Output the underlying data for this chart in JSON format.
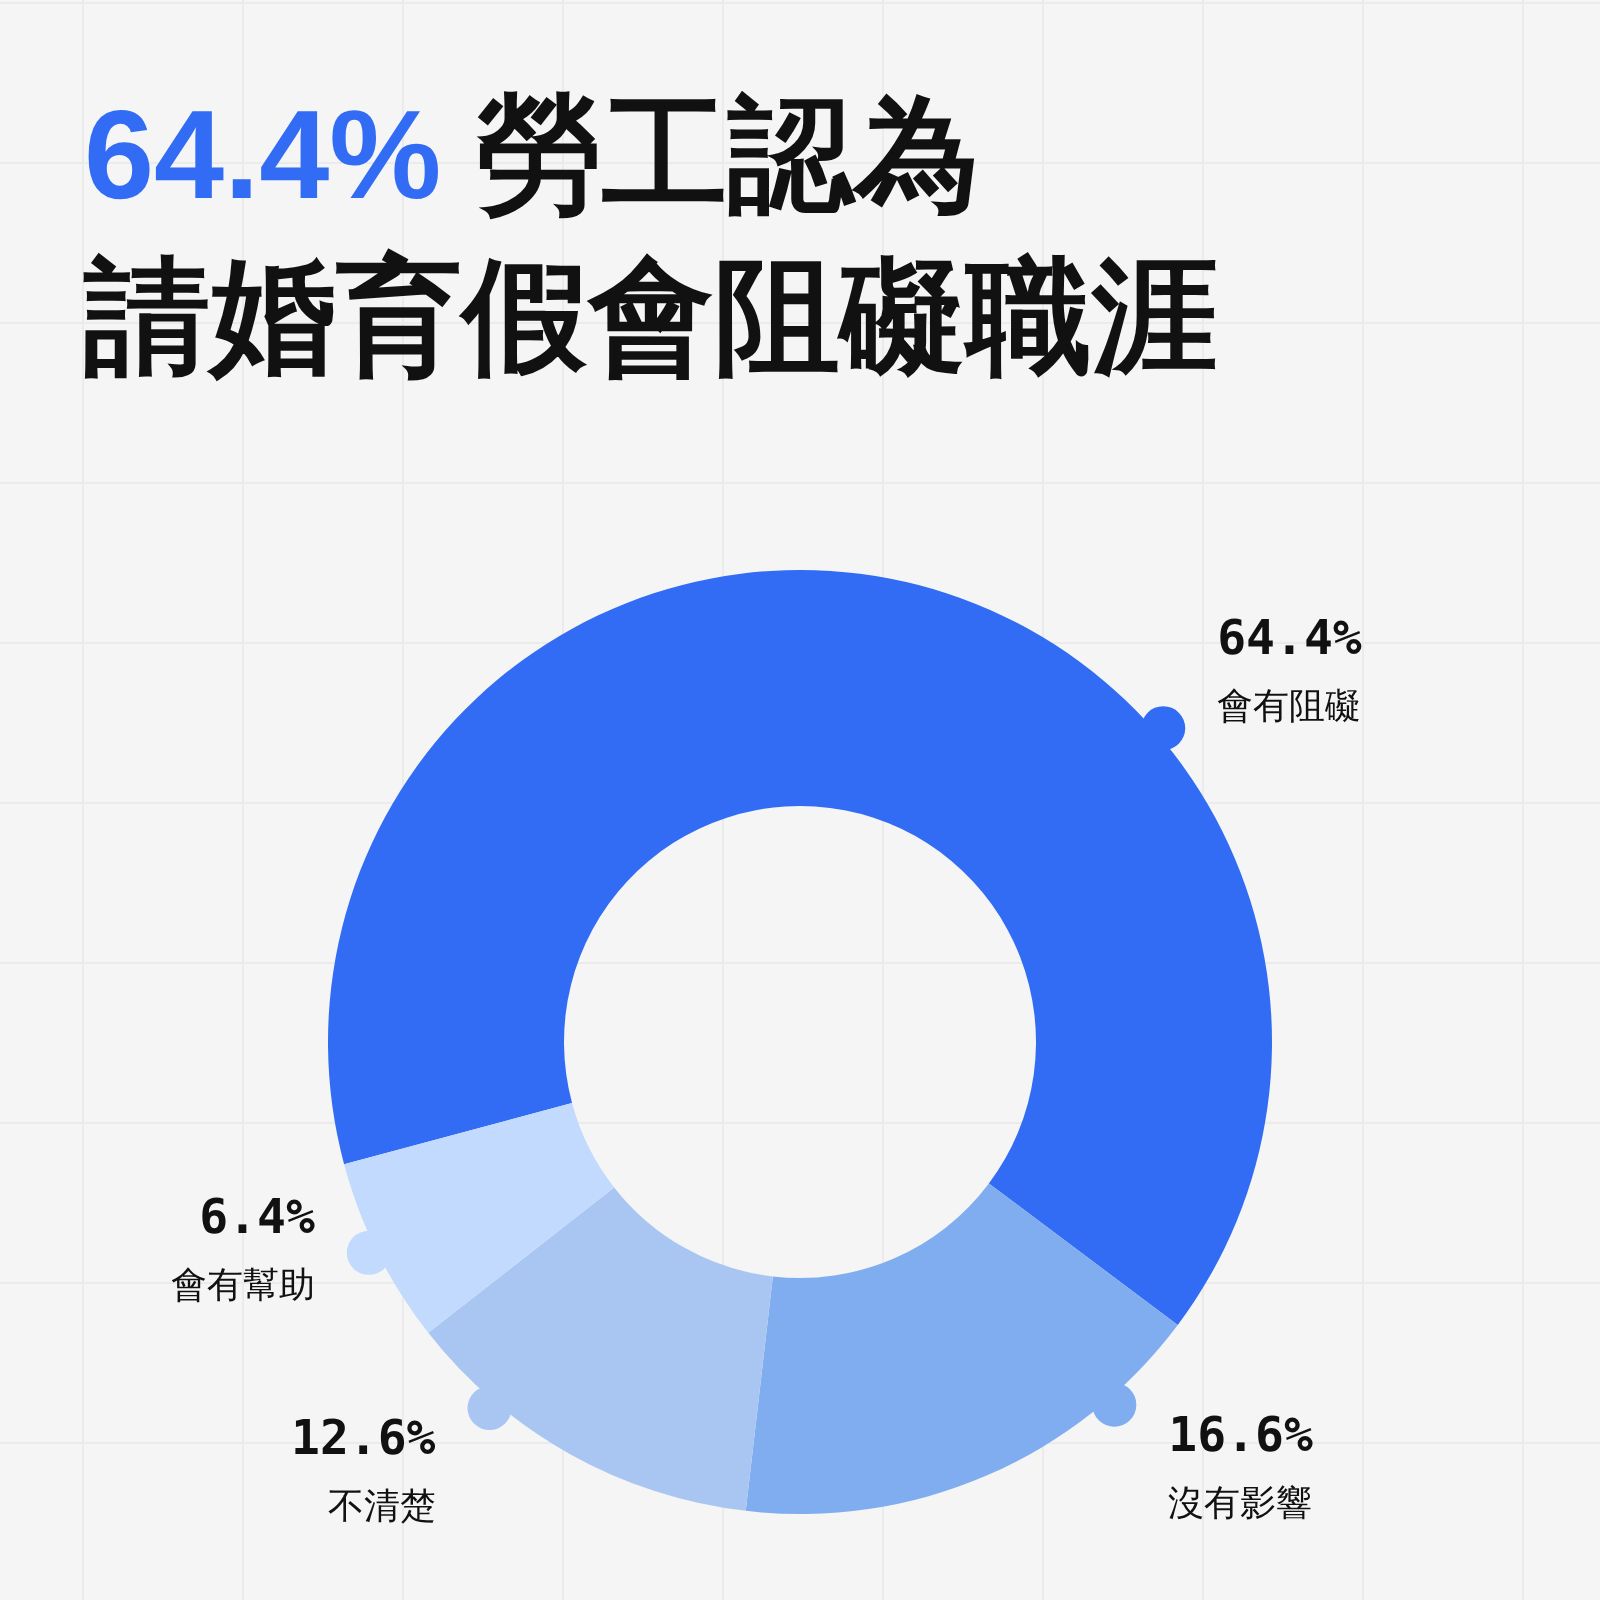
{
  "chart_data": {
    "type": "donut",
    "title": "64.4% 勞工認為",
    "subtitle": "請婚育假會阻礙職涯",
    "categories": [
      "會有阻礙",
      "沒有影響",
      "不清楚",
      "會有幫助"
    ],
    "values": [
      64.4,
      16.6,
      12.6,
      6.4
    ],
    "colors": [
      "#326cf5",
      "#80adef",
      "#a9c6f3",
      "#c2dafd"
    ],
    "value_labels": [
      "64.4%",
      "16.6%",
      "12.6%",
      "6.4%"
    ]
  }
}
